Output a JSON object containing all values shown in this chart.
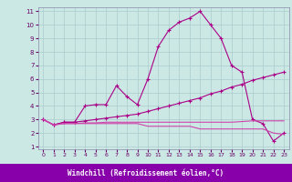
{
  "xlabel": "Windchill (Refroidissement éolien,°C)",
  "xlim": [
    0,
    23
  ],
  "ylim": [
    1,
    11
  ],
  "xticks": [
    0,
    1,
    2,
    3,
    4,
    5,
    6,
    7,
    8,
    9,
    10,
    11,
    12,
    13,
    14,
    15,
    16,
    17,
    18,
    19,
    20,
    21,
    22,
    23
  ],
  "yticks": [
    1,
    2,
    3,
    4,
    5,
    6,
    7,
    8,
    9,
    10,
    11
  ],
  "background_color": "#cce8e4",
  "grid_color": "#aacccc",
  "line_color": "#aa0088",
  "xlabel_bg": "#880088",
  "xlabel_fg": "#ffffff",
  "line1_x": [
    0,
    1,
    2,
    3,
    4,
    5,
    6,
    7,
    8,
    9,
    10,
    11,
    12,
    13,
    14,
    15,
    16,
    17,
    18,
    19,
    20,
    21,
    22,
    23
  ],
  "line1_y": [
    3.0,
    2.6,
    2.8,
    2.8,
    4.0,
    4.1,
    4.1,
    5.5,
    4.7,
    4.1,
    6.0,
    8.4,
    9.6,
    10.2,
    10.5,
    11.0,
    10.0,
    9.0,
    7.0,
    6.5,
    3.0,
    2.7,
    1.4,
    2.0
  ],
  "line2_x": [
    0,
    1,
    2,
    3,
    4,
    5,
    6,
    7,
    8,
    9,
    10,
    11,
    12,
    13,
    14,
    15,
    16,
    17,
    18,
    19,
    20,
    21,
    22,
    23
  ],
  "line2_y": [
    3.0,
    2.6,
    2.8,
    2.8,
    2.9,
    3.0,
    3.1,
    3.2,
    3.3,
    3.4,
    3.6,
    3.8,
    4.0,
    4.2,
    4.4,
    4.6,
    4.9,
    5.1,
    5.4,
    5.6,
    5.9,
    6.1,
    6.3,
    6.5
  ],
  "line3_x": [
    0,
    1,
    2,
    3,
    4,
    5,
    6,
    7,
    8,
    9,
    10,
    11,
    12,
    13,
    14,
    15,
    16,
    17,
    18,
    19,
    20,
    21,
    22,
    23
  ],
  "line3_y": [
    3.0,
    2.6,
    2.7,
    2.7,
    2.7,
    2.7,
    2.7,
    2.7,
    2.7,
    2.7,
    2.5,
    2.5,
    2.5,
    2.5,
    2.5,
    2.3,
    2.3,
    2.3,
    2.3,
    2.3,
    2.3,
    2.3,
    2.0,
    1.9
  ],
  "line4_x": [
    0,
    1,
    2,
    3,
    4,
    5,
    6,
    7,
    8,
    9,
    10,
    11,
    12,
    13,
    14,
    15,
    16,
    17,
    18,
    19,
    20,
    21,
    22,
    23
  ],
  "line4_y": [
    3.0,
    2.6,
    2.7,
    2.7,
    2.75,
    2.75,
    2.8,
    2.8,
    2.8,
    2.8,
    2.8,
    2.8,
    2.8,
    2.8,
    2.8,
    2.8,
    2.8,
    2.8,
    2.8,
    2.85,
    2.9,
    2.9,
    2.9,
    2.9
  ]
}
